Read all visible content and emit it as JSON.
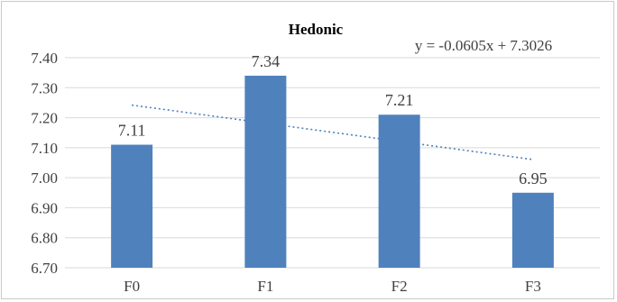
{
  "chart_data": {
    "type": "bar",
    "title": "Hedonic",
    "categories": [
      "F0",
      "F1",
      "F2",
      "F3"
    ],
    "values": [
      7.11,
      7.34,
      7.21,
      6.95
    ],
    "data_labels": [
      "7.11",
      "7.34",
      "7.21",
      "6.95"
    ],
    "ylim": [
      6.7,
      7.4
    ],
    "yticks": [
      "6.70",
      "6.80",
      "6.90",
      "7.00",
      "7.10",
      "7.20",
      "7.30",
      "7.40"
    ],
    "xlabel": "",
    "ylabel": "",
    "grid": true,
    "bar_color": "#4f81bd",
    "trendline": {
      "type": "linear",
      "slope": -0.0605,
      "intercept": 7.3026,
      "style": "dotted",
      "color": "#4f81bd",
      "equation_label": "y = -0.0605x + 7.3026"
    }
  }
}
